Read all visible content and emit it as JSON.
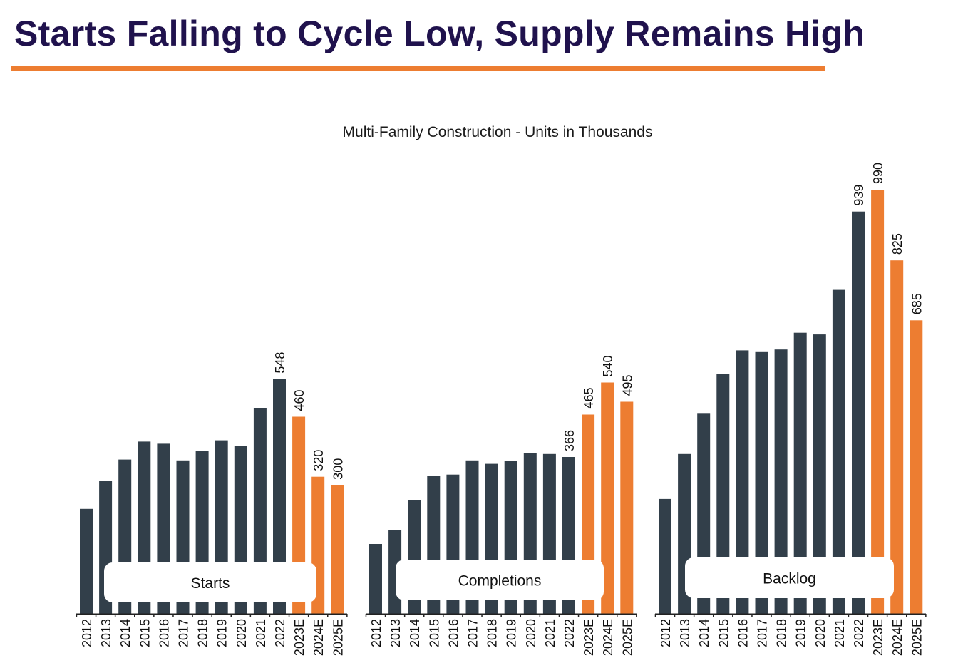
{
  "header": {
    "title": "Starts Falling to Cycle Low, Supply Remains High"
  },
  "chart_data": {
    "type": "bar",
    "title": "Multi-Family Construction - Units in Thousands",
    "colors": {
      "actual": "#323f4a",
      "estimate": "#ed7d31"
    },
    "ylim": [
      0,
      1000
    ],
    "categories": [
      "2012",
      "2013",
      "2014",
      "2015",
      "2016",
      "2017",
      "2018",
      "2019",
      "2020",
      "2021",
      "2022",
      "2023E",
      "2024E",
      "2025E"
    ],
    "groups": [
      {
        "name": "Starts",
        "values": [
          245,
          310,
          360,
          402,
          397,
          358,
          380,
          405,
          392,
          480,
          548,
          460,
          320,
          300
        ],
        "labels": [
          "",
          "",
          "",
          "",
          "",
          "",
          "",
          "",
          "",
          "",
          "548",
          "460",
          "320",
          "300"
        ]
      },
      {
        "name": "Completions",
        "values": [
          163,
          195,
          265,
          322,
          325,
          358,
          350,
          357,
          376,
          373,
          366,
          465,
          540,
          495
        ],
        "labels": [
          "",
          "",
          "",
          "",
          "",
          "",
          "",
          "",
          "",
          "",
          "366",
          "465",
          "540",
          "495"
        ]
      },
      {
        "name": "Backlog",
        "values": [
          268,
          373,
          467,
          559,
          615,
          611,
          617,
          656,
          652,
          756,
          939,
          990,
          825,
          685
        ],
        "labels": [
          "",
          "",
          "",
          "",
          "",
          "",
          "",
          "",
          "",
          "",
          "939",
          "990",
          "825",
          "685"
        ]
      }
    ]
  }
}
